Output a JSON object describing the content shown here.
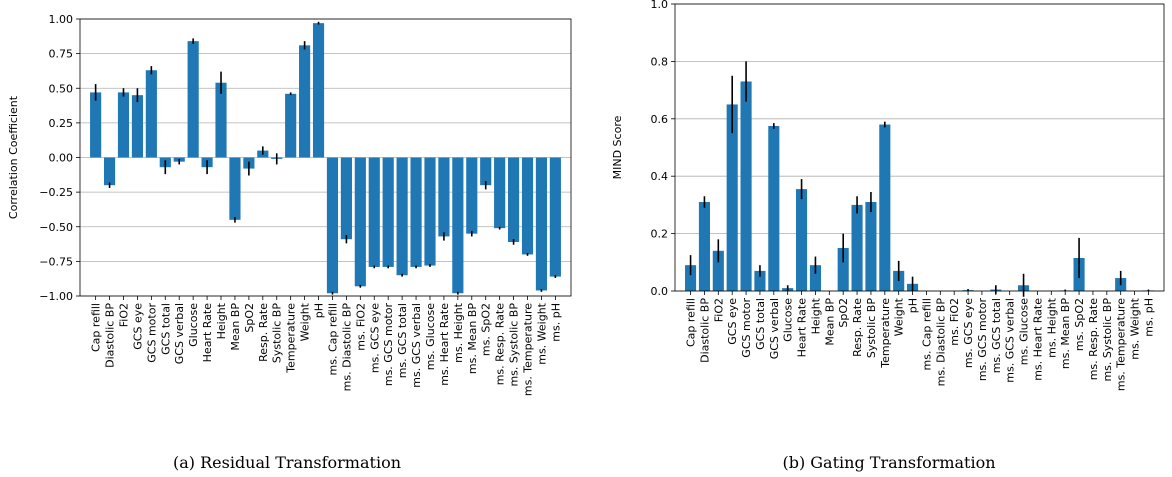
{
  "colors": {
    "bar": "#1f77b4",
    "error": "#000000",
    "grid": "#b0b0b0"
  },
  "chart_data": [
    {
      "type": "bar",
      "caption": "(a) Residual Transformation",
      "xlabel": "",
      "ylabel": "Correlation Coefficient",
      "ylim": [
        -1.0,
        1.0
      ],
      "yticks": [
        -1.0,
        -0.75,
        -0.5,
        -0.25,
        0.0,
        0.25,
        0.5,
        0.75,
        1.0
      ],
      "ytick_labels": [
        "−1.00",
        "−0.75",
        "−0.50",
        "−0.25",
        "0.00",
        "0.25",
        "0.50",
        "0.75",
        "1.00"
      ],
      "grid": "horizontal",
      "categories": [
        "Cap refill",
        "Diastolic BP",
        "FiO2",
        "GCS eye",
        "GCS motor",
        "GCS total",
        "GCS verbal",
        "Glucose",
        "Heart Rate",
        "Height",
        "Mean BP",
        "SpO2",
        "Resp. Rate",
        "Systolic BP",
        "Temperature",
        "Weight",
        "pH",
        "ms. Cap refill",
        "ms. Diastolic BP",
        "ms. FiO2",
        "ms. GCS eye",
        "ms. GCS motor",
        "ms. GCS total",
        "ms. GCS verbal",
        "ms. Glucose",
        "ms. Heart Rate",
        "ms. Height",
        "ms. Mean BP",
        "ms. SpO2",
        "ms. Resp. Rate",
        "ms. Systolic BP",
        "ms. Temperature",
        "ms. Weight",
        "ms. pH"
      ],
      "values": [
        0.47,
        -0.2,
        0.47,
        0.45,
        0.63,
        -0.07,
        -0.03,
        0.84,
        -0.07,
        0.54,
        -0.45,
        -0.08,
        0.05,
        -0.01,
        0.46,
        0.81,
        0.97,
        -0.98,
        -0.59,
        -0.93,
        -0.79,
        -0.79,
        -0.85,
        -0.79,
        -0.78,
        -0.57,
        -0.98,
        -0.55,
        -0.2,
        -0.51,
        -0.61,
        -0.7,
        -0.96,
        -0.86
      ],
      "errors": [
        0.06,
        0.02,
        0.03,
        0.05,
        0.03,
        0.05,
        0.02,
        0.02,
        0.05,
        0.08,
        0.02,
        0.05,
        0.03,
        0.04,
        0.01,
        0.03,
        0.01,
        0.01,
        0.03,
        0.01,
        0.01,
        0.01,
        0.01,
        0.01,
        0.01,
        0.03,
        0.01,
        0.02,
        0.03,
        0.01,
        0.02,
        0.01,
        0.01,
        0.01
      ]
    },
    {
      "type": "bar",
      "caption": "(b) Gating Transformation",
      "xlabel": "",
      "ylabel": "MIND Score",
      "ylim": [
        0.0,
        1.0
      ],
      "yticks": [
        0.0,
        0.2,
        0.4,
        0.6,
        0.8,
        1.0
      ],
      "ytick_labels": [
        "0.0",
        "0.2",
        "0.4",
        "0.6",
        "0.8",
        "1.0"
      ],
      "grid": "horizontal",
      "categories": [
        "Cap refill",
        "Diastolic BP",
        "FiO2",
        "GCS eye",
        "GCS motor",
        "GCS total",
        "GCS verbal",
        "Glucose",
        "Heart Rate",
        "Height",
        "Mean BP",
        "SpO2",
        "Resp. Rate",
        "Systolic BP",
        "Temperature",
        "Weight",
        "pH",
        "ms. Cap refill",
        "ms. Diastolic BP",
        "ms. FiO2",
        "ms. GCS eye",
        "ms. GCS motor",
        "ms. GCS total",
        "ms. GCS verbal",
        "ms. Glucose",
        "ms. Heart Rate",
        "ms. Height",
        "ms. Mean BP",
        "ms. SpO2",
        "ms. Resp. Rate",
        "ms. Systolic BP",
        "ms. Temperature",
        "ms. Weight",
        "ms. pH"
      ],
      "values": [
        0.09,
        0.31,
        0.14,
        0.65,
        0.73,
        0.07,
        0.575,
        0.01,
        0.355,
        0.09,
        0.0,
        0.15,
        0.3,
        0.31,
        0.58,
        0.07,
        0.025,
        0.0,
        0.0,
        0.0,
        0.003,
        0.0,
        0.005,
        0.0,
        0.02,
        0.0,
        0.0,
        0.002,
        0.115,
        0.0,
        0.0,
        0.045,
        0.0,
        0.002
      ],
      "errors": [
        0.035,
        0.02,
        0.04,
        0.1,
        0.07,
        0.02,
        0.01,
        0.01,
        0.035,
        0.03,
        0.0,
        0.05,
        0.03,
        0.035,
        0.01,
        0.035,
        0.025,
        0.0,
        0.0,
        0.0,
        0.004,
        0.0,
        0.015,
        0.0,
        0.04,
        0.0,
        0.0,
        0.003,
        0.07,
        0.0,
        0.0,
        0.025,
        0.0,
        0.003
      ]
    }
  ]
}
